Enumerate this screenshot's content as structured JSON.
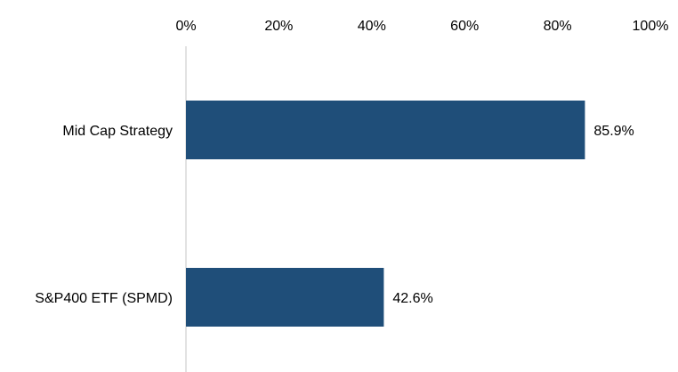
{
  "chart_data": {
    "type": "bar",
    "orientation": "horizontal",
    "categories": [
      "Mid Cap Strategy",
      "S&P400 ETF (SPMD)"
    ],
    "values": [
      85.9,
      42.6
    ],
    "value_labels": [
      "85.9%",
      "42.6%"
    ],
    "xlim": [
      0,
      100
    ],
    "xticks": [
      0,
      20,
      40,
      60,
      80,
      100
    ],
    "xtick_labels": [
      "0%",
      "20%",
      "40%",
      "60%",
      "80%",
      "100%"
    ],
    "axis_position": "top",
    "grid": false,
    "legend": "none",
    "bar_color": "#1F4E79",
    "axis_line_color": "#D9D9D9"
  }
}
